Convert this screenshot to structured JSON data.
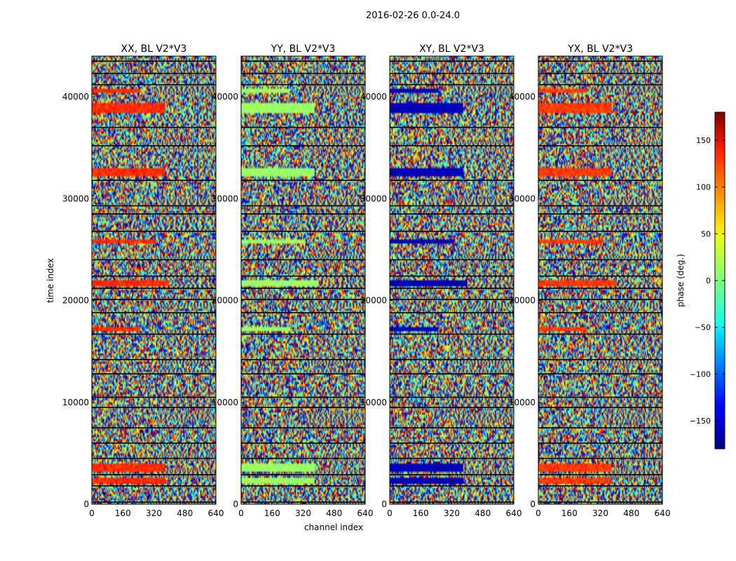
{
  "chart_data": {
    "type": "heatmap",
    "title": "2016-02-26 0.0-24.0",
    "xlabel": "channel index",
    "ylabel": "time index",
    "xlim": [
      0,
      640
    ],
    "ylim": [
      0,
      44000
    ],
    "x_ticks": [
      0,
      160,
      320,
      480,
      640
    ],
    "y_ticks": [
      0,
      10000,
      20000,
      30000,
      40000
    ],
    "colormap": "jet",
    "colorbar": {
      "label": "phase (deg.)",
      "range": [
        -180,
        180
      ],
      "ticks": [
        -150,
        -100,
        -50,
        0,
        50,
        100,
        150
      ],
      "tick_labels": [
        "−150",
        "−100",
        "−50",
        "0",
        "50",
        "100",
        "150"
      ]
    },
    "panels": [
      {
        "title": "XX, BL V2*V3",
        "band_phase_deg": 120
      },
      {
        "title": "YY, BL V2*V3",
        "band_phase_deg": 10
      },
      {
        "title": "XY, BL V2*V3",
        "band_phase_deg": -160
      },
      {
        "title": "YX, BL V2*V3",
        "band_phase_deg": 115
      }
    ],
    "coherent_bands": [
      {
        "y_from": 3200,
        "y_to": 3900,
        "x_to": 380
      },
      {
        "y_from": 38500,
        "y_to": 39300,
        "x_to": 380
      },
      {
        "y_from": 32200,
        "y_to": 32900,
        "x_to": 380
      },
      {
        "y_from": 25600,
        "y_to": 26000,
        "x_to": 330
      },
      {
        "y_from": 21500,
        "y_to": 22000,
        "x_to": 400
      },
      {
        "y_from": 17000,
        "y_to": 17300,
        "x_to": 250
      },
      {
        "y_from": 2000,
        "y_to": 2500,
        "x_to": 380
      },
      {
        "y_from": 40500,
        "y_to": 40800,
        "x_to": 250
      }
    ],
    "gap_rows": [
      200,
      1800,
      2900,
      4500,
      6000,
      7500,
      9500,
      10500,
      12800,
      14200,
      16700,
      18800,
      20100,
      21200,
      22400,
      24000,
      26800,
      28500,
      29300,
      31800,
      35200,
      37000,
      41200,
      42300,
      43500
    ]
  }
}
